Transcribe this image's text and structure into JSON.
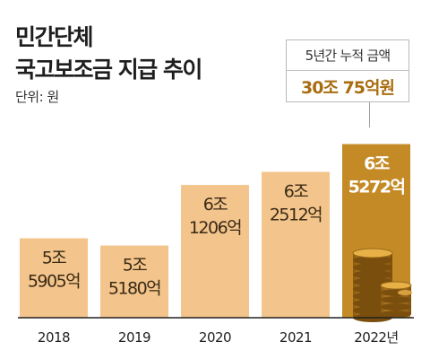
{
  "title_line1": "민간단체",
  "title_line2": "국고보조금 지급 추이",
  "unit_label": "단위: 원",
  "callout": {
    "label": "5년간 누적 금액",
    "value": "30조 75억원"
  },
  "colors": {
    "bar": "#f3c58c",
    "bar_highlight": "#c38a25",
    "label_default": "#3a2a15",
    "label_highlight": "#ffffff",
    "callout_value": "#a86d10",
    "axis": "#222222"
  },
  "chart_data": {
    "type": "bar",
    "categories": [
      "2018",
      "2019",
      "2020",
      "2021",
      "2022년"
    ],
    "values": [
      5.5905,
      5.518,
      6.1206,
      6.2512,
      6.5272
    ],
    "value_unit": "조원",
    "data_labels": [
      [
        "5조",
        "5905억"
      ],
      [
        "5조",
        "5180억"
      ],
      [
        "6조",
        "1206억"
      ],
      [
        "6조",
        "2512억"
      ],
      [
        "6조",
        "5272억"
      ]
    ],
    "highlight_index": 4,
    "title": "민간단체 국고보조금 지급 추이",
    "xlabel": "",
    "ylabel": "",
    "grid": false,
    "legend": "none"
  }
}
